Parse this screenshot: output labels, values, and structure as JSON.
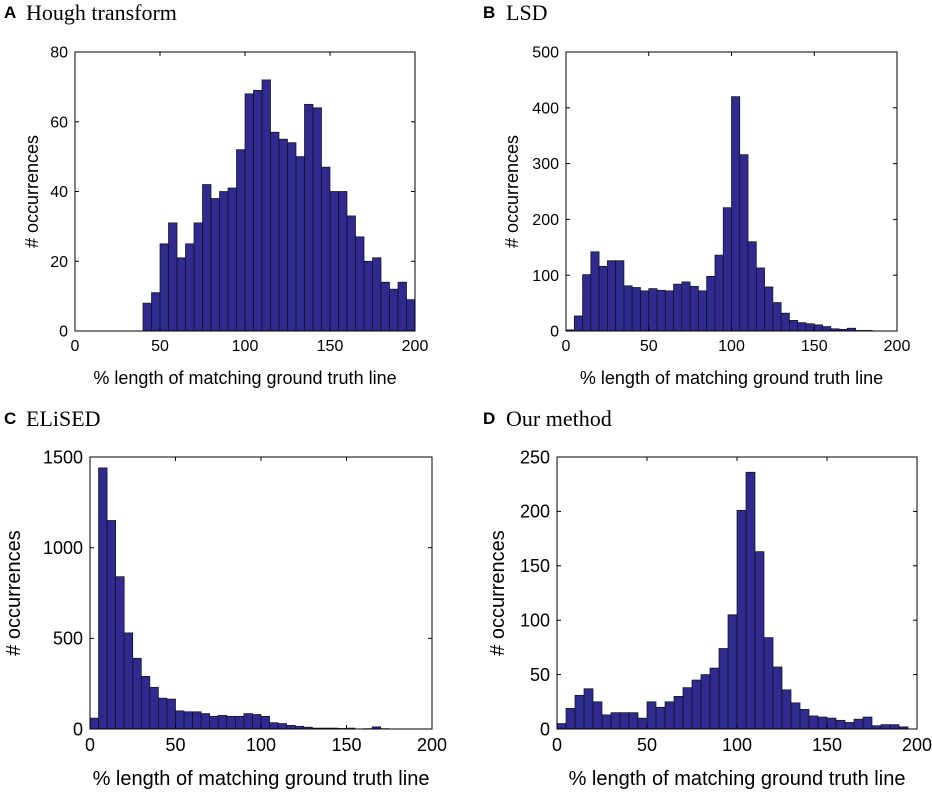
{
  "figure": {
    "bar_color": "#2e2a8f",
    "edge_color": "#111111"
  },
  "chart_data": [
    {
      "type": "bar",
      "panel": "A",
      "title": "Hough transform",
      "xlabel": "% length of matching ground truth line",
      "ylabel": "# occurrences",
      "xlim": [
        0,
        200
      ],
      "ylim": [
        0,
        80
      ],
      "xticks": [
        0,
        50,
        100,
        150,
        200
      ],
      "yticks": [
        0,
        20,
        40,
        60,
        80
      ],
      "bin_width": 5,
      "bin_start": 0,
      "values": [
        0,
        0,
        0,
        0,
        0,
        0,
        0,
        0,
        8,
        11,
        25,
        31,
        21,
        25,
        31,
        42,
        38,
        40,
        41,
        52,
        68,
        69,
        72,
        57,
        55,
        54,
        50,
        65,
        64,
        47,
        40,
        40,
        33,
        27,
        20,
        21,
        14,
        12,
        14,
        9
      ]
    },
    {
      "type": "bar",
      "panel": "B",
      "title": "LSD",
      "xlabel": "% length of matching ground truth line",
      "ylabel": "# occurrences",
      "xlim": [
        0,
        200
      ],
      "ylim": [
        0,
        500
      ],
      "xticks": [
        0,
        50,
        100,
        150,
        200
      ],
      "yticks": [
        0,
        100,
        200,
        300,
        400,
        500
      ],
      "bin_width": 5,
      "bin_start": 0,
      "values": [
        2,
        27,
        101,
        142,
        116,
        126,
        126,
        81,
        78,
        72,
        76,
        73,
        72,
        84,
        88,
        80,
        72,
        98,
        136,
        221,
        420,
        316,
        160,
        113,
        79,
        51,
        32,
        19,
        15,
        13,
        11,
        8,
        4,
        3,
        5,
        1,
        1,
        0,
        0,
        0
      ]
    },
    {
      "type": "bar",
      "panel": "C",
      "title": "ELiSED",
      "xlabel": "% length of matching ground truth line",
      "ylabel": "# occurrences",
      "xlim": [
        0,
        200
      ],
      "ylim": [
        0,
        1500
      ],
      "xticks": [
        0,
        50,
        100,
        150,
        200
      ],
      "yticks": [
        0,
        500,
        1000,
        1500
      ],
      "bin_width": 5,
      "bin_start": 0,
      "values": [
        60,
        1440,
        1150,
        840,
        530,
        390,
        290,
        230,
        170,
        165,
        100,
        95,
        95,
        85,
        70,
        75,
        70,
        70,
        85,
        80,
        70,
        35,
        30,
        20,
        15,
        10,
        5,
        5,
        5,
        3,
        5,
        0,
        2,
        12,
        2,
        0,
        0,
        0,
        0,
        0
      ]
    },
    {
      "type": "bar",
      "panel": "D",
      "title": "Our method",
      "xlabel": "% length of matching ground truth line",
      "ylabel": "# occurrences",
      "xlim": [
        0,
        200
      ],
      "ylim": [
        0,
        250
      ],
      "xticks": [
        0,
        50,
        100,
        150,
        200
      ],
      "yticks": [
        0,
        50,
        100,
        150,
        200,
        250
      ],
      "bin_width": 5,
      "bin_start": 0,
      "values": [
        5,
        19,
        31,
        37,
        25,
        13,
        15,
        15,
        15,
        10,
        25,
        20,
        25,
        30,
        38,
        45,
        50,
        56,
        74,
        105,
        201,
        236,
        163,
        84,
        57,
        36,
        24,
        18,
        12,
        11,
        10,
        8,
        6,
        9,
        11,
        3,
        4,
        4,
        2,
        0
      ]
    }
  ]
}
